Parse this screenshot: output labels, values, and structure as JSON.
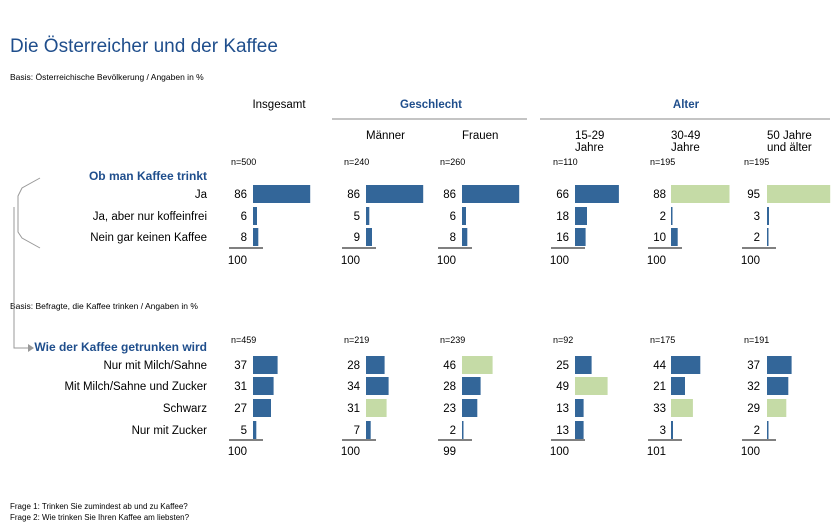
{
  "title": "Die Österreicher und der Kaffee",
  "basis1": "Basis: Österreichische Bevölkerung / Angaben in %",
  "basis2": "Basis: Befragte, die Kaffee trinken / Angaben in %",
  "footnotes": [
    "Frage 1: Trinken Sie zumindest ab und zu Kaffee?",
    "Frage 2: Wie trinken Sie Ihren Kaffee am liebsten?"
  ],
  "colors": {
    "bar": "#336699",
    "highlight": "#c5dba6",
    "heading": "#1f4e8c",
    "bracket": "#999999"
  },
  "chart_data": {
    "type": "table",
    "group_headers": [
      "Geschlecht",
      "Alter"
    ],
    "columns": [
      {
        "label": "Insgesamt",
        "group": ""
      },
      {
        "label": "Männer",
        "group": "Geschlecht"
      },
      {
        "label": "Frauen",
        "group": "Geschlecht"
      },
      {
        "label": "15-29 Jahre",
        "lines": [
          "15-29",
          "Jahre"
        ],
        "group": "Alter"
      },
      {
        "label": "30-49 Jahre",
        "lines": [
          "30-49",
          "Jahre"
        ],
        "group": "Alter"
      },
      {
        "label": "50 Jahre und älter",
        "lines": [
          "50 Jahre",
          "und älter"
        ],
        "group": "Alter"
      }
    ],
    "sections": [
      {
        "heading": "Ob man Kaffee trinkt",
        "n": [
          "n=500",
          "n=240",
          "n=260",
          "n=110",
          "n=195",
          "n=195"
        ],
        "rows": [
          {
            "label": "Ja",
            "values": [
              86,
              86,
              86,
              66,
              88,
              95
            ]
          },
          {
            "label": "Ja, aber nur koffeinfrei",
            "values": [
              6,
              5,
              6,
              18,
              2,
              3
            ]
          },
          {
            "label": "Nein gar keinen Kaffee",
            "values": [
              8,
              9,
              8,
              16,
              10,
              2
            ]
          }
        ],
        "totals": [
          100,
          100,
          100,
          100,
          100,
          100
        ],
        "highlights": [
          [
            0,
            4
          ],
          [
            0,
            5
          ]
        ]
      },
      {
        "heading": "Wie der Kaffee getrunken wird",
        "n": [
          "n=459",
          "n=219",
          "n=239",
          "n=92",
          "n=175",
          "n=191"
        ],
        "rows": [
          {
            "label": "Nur mit Milch/Sahne",
            "values": [
              37,
              28,
              46,
              25,
              44,
              37
            ]
          },
          {
            "label": "Mit Milch/Sahne und Zucker",
            "values": [
              31,
              34,
              28,
              49,
              21,
              32
            ]
          },
          {
            "label": "Schwarz",
            "values": [
              27,
              31,
              23,
              13,
              33,
              29
            ]
          },
          {
            "label": "Nur mit Zucker",
            "values": [
              5,
              7,
              2,
              13,
              3,
              2
            ]
          }
        ],
        "totals": [
          100,
          100,
          99,
          100,
          101,
          100
        ],
        "highlights": [
          [
            0,
            2
          ],
          [
            1,
            3
          ],
          [
            2,
            1
          ],
          [
            2,
            4
          ],
          [
            2,
            5
          ]
        ]
      }
    ]
  }
}
